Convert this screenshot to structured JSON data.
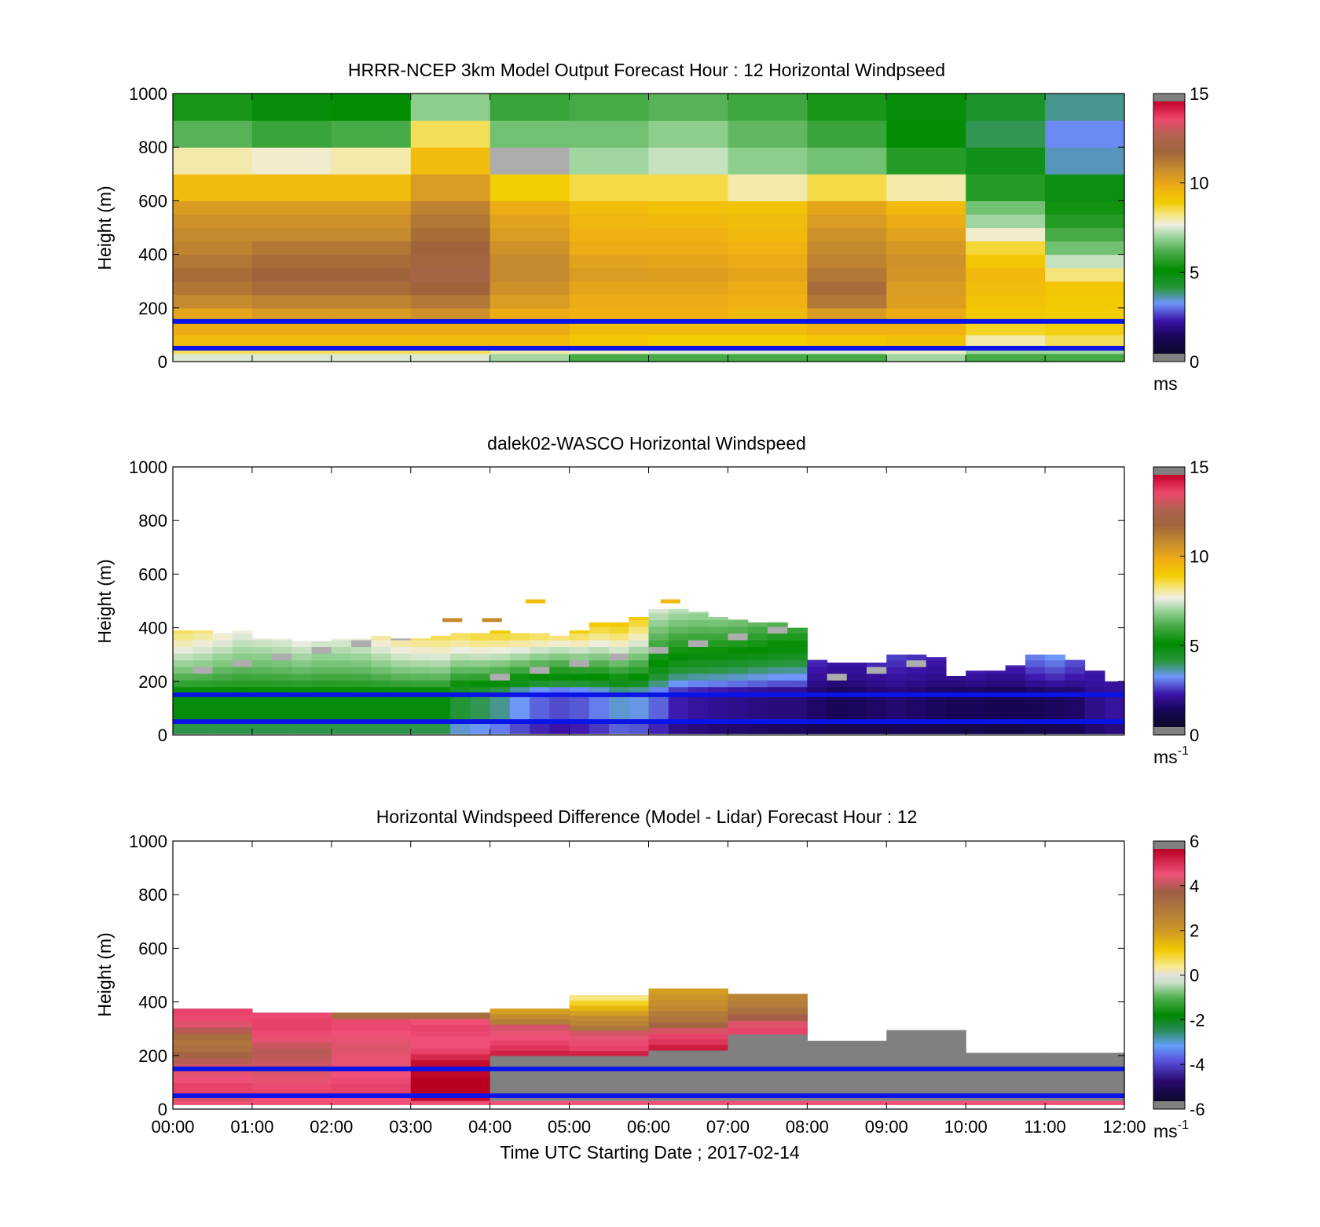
{
  "chart_data": [
    {
      "type": "heatmap",
      "title": "HRRR-NCEP 3km Model Output   Forecast Hour : 12 Horizontal Windpseed",
      "ylabel": "Height (m)",
      "ylim": [
        0,
        1000
      ],
      "yticks": [
        "0",
        "200",
        "400",
        "600",
        "800",
        "1000"
      ],
      "xlim": [
        0,
        12
      ],
      "x_tick_labels_shown": false,
      "colorbar": {
        "range": [
          0,
          15
        ],
        "ticks": [
          "0",
          "5",
          "10",
          "15"
        ],
        "unit": "ms",
        "unit_sup": ""
      },
      "reference_lines_m": [
        150,
        50
      ],
      "x_bins": [
        0,
        1,
        2,
        3,
        4,
        5,
        6,
        7,
        8,
        9,
        10,
        11,
        12
      ],
      "height_bins_m": [
        0,
        30,
        50,
        100,
        150,
        200,
        250,
        300,
        350,
        400,
        450,
        500,
        550,
        600,
        700,
        800,
        900,
        1000
      ],
      "values": [
        [
          7.5,
          7.5,
          7.5,
          7.5,
          7.0,
          6.0,
          6.0,
          6.0,
          6.0,
          7.0,
          6.0,
          6.0
        ],
        [
          8.5,
          8.5,
          8.5,
          8.5,
          8.0,
          7.8,
          7.5,
          7.5,
          7.5,
          7.8,
          7.0,
          7.0
        ],
        [
          9.5,
          9.5,
          9.5,
          9.5,
          9.5,
          9.2,
          9.0,
          9.0,
          9.2,
          9.4,
          8.0,
          8.5
        ],
        [
          10.0,
          10.0,
          10.0,
          10.0,
          10.0,
          9.5,
          9.5,
          9.5,
          9.8,
          9.8,
          8.8,
          8.9
        ],
        [
          10.2,
          10.5,
          10.5,
          10.8,
          10.0,
          9.8,
          9.8,
          9.6,
          10.5,
          10.0,
          9.1,
          9.0
        ],
        [
          11.0,
          11.2,
          11.2,
          11.5,
          10.5,
          10.0,
          10.0,
          9.8,
          11.5,
          10.4,
          9.3,
          9.1
        ],
        [
          11.5,
          11.8,
          11.8,
          12.0,
          10.8,
          10.2,
          10.2,
          10.0,
          11.8,
          10.5,
          9.5,
          9.2
        ],
        [
          11.8,
          12.0,
          12.0,
          12.3,
          11.0,
          10.5,
          10.4,
          10.2,
          11.5,
          10.7,
          9.6,
          8.3
        ],
        [
          11.5,
          11.8,
          11.8,
          12.2,
          11.0,
          10.3,
          10.2,
          10.0,
          11.2,
          10.8,
          9.2,
          7.3
        ],
        [
          11.2,
          11.5,
          11.5,
          12.0,
          10.8,
          10.0,
          10.0,
          9.8,
          11.0,
          10.6,
          8.7,
          6.5
        ],
        [
          11.0,
          11.0,
          11.0,
          11.8,
          10.5,
          9.8,
          9.8,
          9.6,
          10.8,
          10.3,
          7.8,
          6.0
        ],
        [
          10.8,
          10.8,
          10.8,
          11.5,
          10.3,
          9.7,
          9.6,
          9.5,
          10.5,
          10.0,
          7.0,
          5.5
        ],
        [
          10.5,
          10.5,
          10.5,
          11.2,
          10.0,
          9.5,
          9.4,
          9.3,
          10.2,
          9.6,
          6.5,
          5.2
        ],
        [
          9.5,
          9.5,
          9.5,
          10.5,
          9.0,
          8.6,
          8.6,
          8.0,
          8.6,
          8.0,
          5.5,
          4.6
        ],
        [
          8.0,
          7.8,
          8.0,
          9.5,
          0.0,
          7.0,
          7.3,
          6.8,
          6.5,
          5.5,
          4.5,
          3.3
        ],
        [
          6.2,
          5.8,
          6.0,
          8.5,
          6.5,
          6.5,
          6.8,
          6.3,
          5.8,
          5.0,
          3.8,
          2.9
        ],
        [
          5.3,
          4.8,
          5.0,
          6.8,
          5.8,
          6.0,
          6.2,
          5.9,
          5.3,
          4.8,
          4.2,
          3.5
        ]
      ]
    },
    {
      "type": "heatmap",
      "title": "dalek02-WASCO  Horizontal Windspeed",
      "ylabel": "Height (m)",
      "ylim": [
        0,
        1000
      ],
      "yticks": [
        "0",
        "200",
        "400",
        "600",
        "800",
        "1000"
      ],
      "xlim": [
        0,
        12
      ],
      "x_tick_labels_shown": false,
      "colorbar": {
        "range": [
          0,
          15
        ],
        "ticks": [
          "0",
          "5",
          "10",
          "15"
        ],
        "unit": "ms",
        "unit_sup": "-1"
      },
      "reference_lines_m": [
        150,
        50
      ],
      "profile_times_h": [
        0.0,
        0.25,
        0.5,
        0.75,
        1.0,
        1.25,
        1.5,
        1.75,
        2.0,
        2.25,
        2.5,
        2.75,
        3.0,
        3.25,
        3.5,
        3.75,
        4.0,
        4.25,
        4.5,
        4.75,
        5.0,
        5.25,
        5.5,
        5.75,
        6.0,
        6.25,
        6.5,
        6.75,
        7.0,
        7.25,
        7.5,
        7.75,
        8.0,
        8.25,
        8.5,
        8.75,
        9.0,
        9.25,
        9.5,
        9.75,
        10.0,
        10.25,
        10.5,
        10.75,
        11.0,
        11.25,
        11.5,
        11.75
      ],
      "profile_top_m": [
        390,
        390,
        380,
        390,
        360,
        360,
        350,
        350,
        360,
        360,
        370,
        360,
        360,
        370,
        380,
        380,
        390,
        380,
        380,
        370,
        390,
        420,
        420,
        440,
        470,
        470,
        460,
        440,
        430,
        420,
        420,
        400,
        280,
        270,
        270,
        270,
        300,
        300,
        290,
        220,
        240,
        240,
        260,
        300,
        300,
        280,
        240,
        200
      ],
      "profile_bottom_m": [
        5,
        5,
        5,
        5,
        5,
        5,
        5,
        5,
        5,
        5,
        5,
        5,
        5,
        5,
        5,
        5,
        5,
        5,
        5,
        5,
        5,
        5,
        5,
        5,
        5,
        5,
        5,
        5,
        5,
        5,
        5,
        5,
        5,
        5,
        5,
        5,
        5,
        5,
        5,
        5,
        5,
        5,
        5,
        5,
        5,
        5,
        5,
        5
      ],
      "profile_speed_low_ms": [
        4.8,
        4.8,
        4.8,
        4.8,
        4.8,
        4.8,
        4.8,
        4.8,
        4.8,
        4.8,
        4.8,
        4.8,
        4.8,
        4.8,
        4.0,
        3.8,
        3.5,
        3.0,
        2.6,
        2.4,
        2.5,
        2.8,
        3.2,
        3.1,
        2.6,
        2.0,
        1.8,
        1.7,
        1.6,
        1.5,
        1.4,
        1.4,
        1.2,
        1.0,
        1.1,
        1.2,
        1.3,
        1.2,
        1.1,
        1.0,
        1.0,
        0.9,
        0.9,
        1.0,
        1.1,
        1.2,
        1.6,
        1.8
      ],
      "profile_speed_top_ms": [
        8.6,
        8.4,
        8.0,
        7.8,
        7.6,
        7.7,
        7.8,
        7.6,
        7.7,
        7.8,
        8.2,
        8.4,
        8.5,
        8.7,
        8.8,
        9.0,
        9.2,
        9.0,
        8.9,
        8.6,
        9.1,
        9.3,
        9.4,
        9.2,
        7.6,
        7.4,
        7.2,
        7.0,
        6.8,
        6.5,
        6.3,
        6.0,
        2.2,
        2.0,
        2.0,
        2.2,
        2.4,
        2.3,
        2.1,
        1.8,
        2.1,
        2.0,
        2.2,
        3.0,
        3.2,
        2.6,
        2.0,
        1.8
      ],
      "sparse_points": [
        {
          "x": 4.45,
          "height_m": 500,
          "speed_ms": 9.5
        },
        {
          "x": 6.15,
          "height_m": 500,
          "speed_ms": 9.6
        },
        {
          "x": 3.4,
          "height_m": 430,
          "speed_ms": 11.0
        },
        {
          "x": 3.9,
          "height_m": 430,
          "speed_ms": 11.0
        }
      ]
    },
    {
      "type": "heatmap",
      "title": "Horizontal Windspeed Difference (Model - Lidar) Forecast Hour : 12",
      "xlabel": "Time UTC  Starting Date ; 2017-02-14",
      "ylabel": "Height (m)",
      "ylim": [
        0,
        1000
      ],
      "yticks": [
        "0",
        "200",
        "400",
        "600",
        "800",
        "1000"
      ],
      "xlim": [
        0,
        12
      ],
      "xticks": [
        "00:00",
        "01:00",
        "02:00",
        "03:00",
        "04:00",
        "05:00",
        "06:00",
        "07:00",
        "08:00",
        "09:00",
        "10:00",
        "11:00",
        "12:00"
      ],
      "colorbar": {
        "range": [
          -6,
          6
        ],
        "ticks": [
          "-6",
          "-4",
          "-2",
          "0",
          "2",
          "4",
          "6"
        ],
        "unit": "ms",
        "unit_sup": "-1"
      },
      "reference_lines_m": [
        150,
        50
      ],
      "columns": [
        {
          "x": [
            0,
            1
          ],
          "top_m": 375,
          "gray_top_m": 0,
          "colored_diff": [
            4.5,
            5.0,
            5.0,
            4.8,
            4.7,
            4.5,
            4.2,
            3.8,
            3.4,
            3.2,
            3.5,
            4.2,
            4.6,
            4.9,
            5.0
          ]
        },
        {
          "x": [
            1,
            2
          ],
          "top_m": 360,
          "gray_top_m": 0,
          "colored_diff": [
            4.8,
            5.0,
            4.9,
            4.7,
            4.6,
            4.5,
            4.4,
            4.3,
            4.2,
            4.4,
            4.7,
            4.9,
            5.0,
            5.0,
            4.9
          ]
        },
        {
          "x": [
            2,
            3
          ],
          "top_m": 360,
          "gray_top_m": 0,
          "colored_diff": [
            4.8,
            5.0,
            5.0,
            4.9,
            4.8,
            4.8,
            4.7,
            4.7,
            4.6,
            4.6,
            4.7,
            4.8,
            4.9,
            4.9,
            3.5
          ]
        },
        {
          "x": [
            3,
            4
          ],
          "top_m": 360,
          "gray_top_m": 0,
          "colored_diff": [
            5.8,
            6.0,
            6.0,
            6.0,
            5.9,
            5.9,
            5.8,
            5.4,
            5.0,
            4.8,
            4.8,
            4.9,
            5.0,
            4.8,
            3.5
          ]
        },
        {
          "x": [
            4,
            5
          ],
          "top_m": 375,
          "gray_top_m": 200,
          "colored_diff": [
            5.5,
            5.2,
            5.0,
            4.8,
            4.7,
            4.5,
            3.0,
            2.5,
            2.0
          ]
        },
        {
          "x": [
            5,
            6
          ],
          "top_m": 425,
          "gray_top_m": 200,
          "colored_diff": [
            5.5,
            5.0,
            4.9,
            4.7,
            4.5,
            3.3,
            2.8,
            2.5,
            2.0,
            1.5,
            1.0,
            0.5
          ]
        },
        {
          "x": [
            6,
            7
          ],
          "top_m": 450,
          "gray_top_m": 220,
          "colored_diff": [
            5.6,
            5.2,
            5.0,
            4.5,
            3.8,
            3.2,
            3.0,
            2.6,
            2.4,
            2.2,
            2.0
          ]
        },
        {
          "x": [
            7,
            8
          ],
          "top_m": 430,
          "gray_top_m": 280,
          "colored_diff": [
            5.0,
            4.6,
            4.0,
            3.4,
            3.0,
            2.8
          ]
        },
        {
          "x": [
            8,
            9
          ],
          "top_m": 255,
          "gray_top_m": 255,
          "colored_diff": []
        },
        {
          "x": [
            9,
            10
          ],
          "top_m": 295,
          "gray_top_m": 295,
          "colored_diff": []
        },
        {
          "x": [
            10,
            11
          ],
          "top_m": 210,
          "gray_top_m": 210,
          "colored_diff": []
        },
        {
          "x": [
            11,
            12
          ],
          "top_m": 210,
          "gray_top_m": 210,
          "colored_diff": []
        }
      ]
    }
  ],
  "colors": {
    "reference_line": "#0a14e6",
    "out_of_range": "#808080"
  }
}
